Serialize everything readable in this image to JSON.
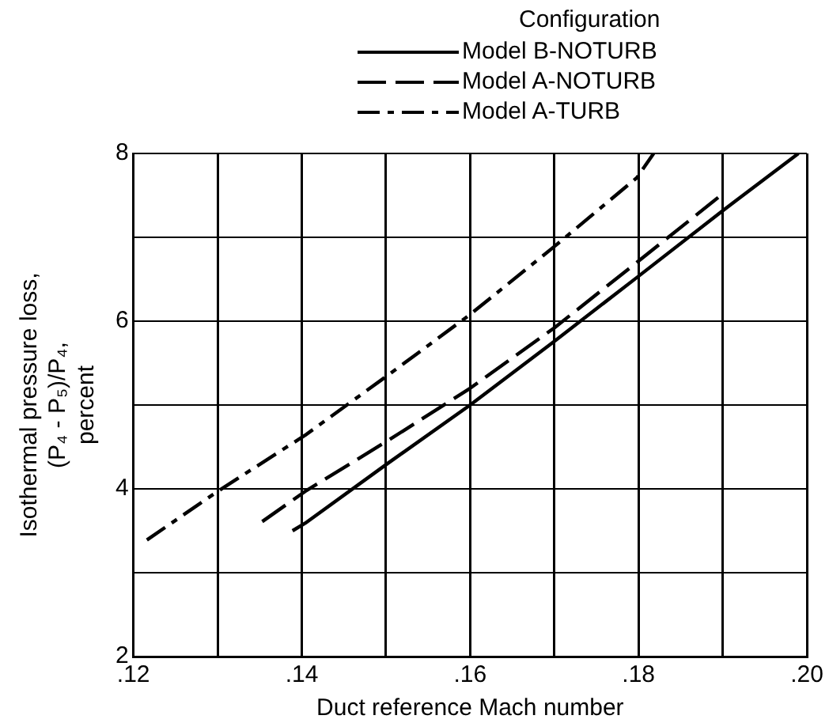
{
  "chart_data": {
    "type": "line",
    "xlabel": "Duct reference Mach number",
    "ylabel": "Isothermal pressure loss, (P₄ - P₅)/P₄, percent",
    "legend_title": "Configuration",
    "legend": "top right",
    "grid": true,
    "marker": "none",
    "xlim": [
      0.12,
      0.2
    ],
    "ylim": [
      2,
      8
    ],
    "xticks": [
      {
        "value": 0.12,
        "label": ".12"
      },
      {
        "value": 0.13,
        "label": null
      },
      {
        "value": 0.14,
        "label": ".14"
      },
      {
        "value": 0.15,
        "label": null
      },
      {
        "value": 0.16,
        "label": ".16"
      },
      {
        "value": 0.17,
        "label": null
      },
      {
        "value": 0.18,
        "label": ".18"
      },
      {
        "value": 0.19,
        "label": null
      },
      {
        "value": 0.2,
        "label": ".20"
      }
    ],
    "yticks": [
      2,
      {
        "value": 3,
        "label": null
      },
      4,
      {
        "value": 5,
        "label": null
      },
      6,
      {
        "value": 7,
        "label": null
      },
      8
    ],
    "series": [
      {
        "name": "Model B-NOTURB",
        "color": "#000000",
        "line_style": "solid",
        "x": [
          0.1389,
          0.1404,
          0.1503,
          0.16,
          0.17,
          0.1798,
          0.1899,
          0.199
        ],
        "values": [
          3.5,
          3.59,
          4.31,
          5.0,
          5.76,
          6.52,
          7.31,
          8.0
        ]
      },
      {
        "name": "Model A-NOTURB",
        "color": "#000000",
        "line_style": "dashed",
        "x": [
          0.1353,
          0.1404,
          0.1503,
          0.16,
          0.17,
          0.1798,
          0.1899
        ],
        "values": [
          3.61,
          3.97,
          4.58,
          5.2,
          5.92,
          6.7,
          7.51
        ]
      },
      {
        "name": "Model A-TURB",
        "color": "#000000",
        "line_style": "dashdot",
        "x": [
          0.1216,
          0.13,
          0.1404,
          0.1503,
          0.16,
          0.17,
          0.1798,
          0.1818
        ],
        "values": [
          3.39,
          3.97,
          4.64,
          5.36,
          6.08,
          6.89,
          7.71,
          8.0
        ]
      }
    ]
  }
}
